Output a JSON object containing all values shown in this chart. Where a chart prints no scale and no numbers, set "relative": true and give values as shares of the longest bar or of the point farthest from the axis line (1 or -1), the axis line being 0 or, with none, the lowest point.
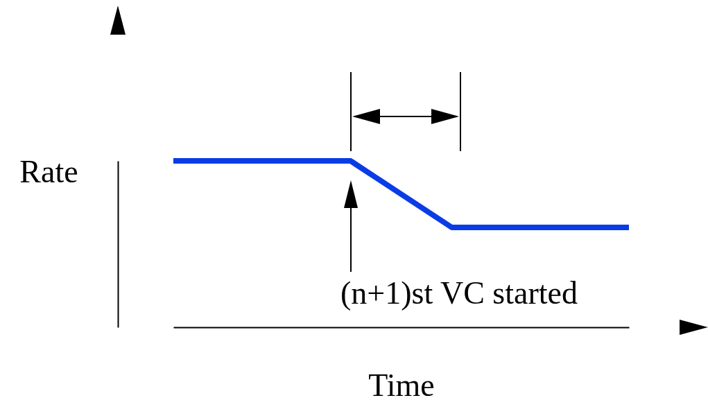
{
  "chart_data": {
    "type": "line",
    "relative": true,
    "xlabel": "Time",
    "ylabel": "Rate",
    "categories": [
      null,
      null,
      null,
      null,
      null,
      null,
      null,
      null,
      null,
      null,
      null,
      null,
      null,
      null,
      null,
      null,
      null,
      null,
      null
    ],
    "series": [
      {
        "color": "#0a3ce6",
        "values": [
          1,
          1,
          1,
          1,
          1,
          1,
          1,
          1,
          0.9,
          0.8,
          0.7,
          0.6,
          0.6,
          0.6,
          0.6,
          0.6,
          0.6,
          0.6,
          0.6
        ]
      }
    ],
    "annotations": [
      "(n+1)st VC started"
    ]
  }
}
